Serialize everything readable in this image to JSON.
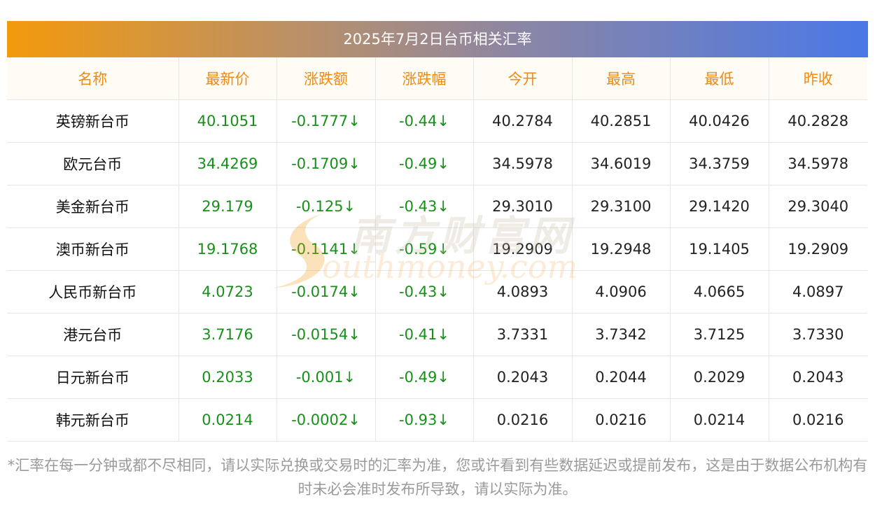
{
  "title": "2025年7月2日台币相关汇率",
  "table": {
    "headers": [
      "名称",
      "最新价",
      "涨跌额",
      "涨跌幅",
      "今开",
      "最高",
      "最低",
      "昨收"
    ],
    "rows": [
      {
        "name": "英镑新台币",
        "latest": "40.1051",
        "change": "-0.1777↓",
        "change_pct": "-0.44↓",
        "open": "40.2784",
        "high": "40.2851",
        "low": "40.0426",
        "prev_close": "40.2828"
      },
      {
        "name": "欧元台币",
        "latest": "34.4269",
        "change": "-0.1709↓",
        "change_pct": "-0.49↓",
        "open": "34.5978",
        "high": "34.6019",
        "low": "34.3759",
        "prev_close": "34.5978"
      },
      {
        "name": "美金新台币",
        "latest": "29.179",
        "change": "-0.125↓",
        "change_pct": "-0.43↓",
        "open": "29.3010",
        "high": "29.3100",
        "low": "29.1420",
        "prev_close": "29.3040"
      },
      {
        "name": "澳币新台币",
        "latest": "19.1768",
        "change": "-0.1141↓",
        "change_pct": "-0.59↓",
        "open": "19.2909",
        "high": "19.2948",
        "low": "19.1405",
        "prev_close": "19.2909"
      },
      {
        "name": "人民币新台币",
        "latest": "4.0723",
        "change": "-0.0174↓",
        "change_pct": "-0.43↓",
        "open": "4.0893",
        "high": "4.0906",
        "low": "4.0665",
        "prev_close": "4.0897"
      },
      {
        "name": "港元台币",
        "latest": "3.7176",
        "change": "-0.0154↓",
        "change_pct": "-0.41↓",
        "open": "3.7331",
        "high": "3.7342",
        "low": "3.7125",
        "prev_close": "3.7330"
      },
      {
        "name": "日元新台币",
        "latest": "0.2033",
        "change": "-0.001↓",
        "change_pct": "-0.49↓",
        "open": "0.2043",
        "high": "0.2044",
        "low": "0.2029",
        "prev_close": "0.2043"
      },
      {
        "name": "韩元新台币",
        "latest": "0.0214",
        "change": "-0.0002↓",
        "change_pct": "-0.93↓",
        "open": "0.0216",
        "high": "0.0216",
        "low": "0.0214",
        "prev_close": "0.0216"
      }
    ]
  },
  "watermark": {
    "chinese": "南方财富网",
    "english": "outhmoney.com"
  },
  "note": "*汇率在每一分钟或都不尽相同，请以实际兑换或交易时的汇率为准，您或许看到有些数据延迟或提前发布，这是由于数据公布机构有时未必会准时发布所导致，请以实际为准。",
  "colors": {
    "header_text": "#f08a12",
    "down": "#17901a",
    "title_gradient_start": "#f39a0d",
    "title_gradient_end": "#4a78e6"
  }
}
